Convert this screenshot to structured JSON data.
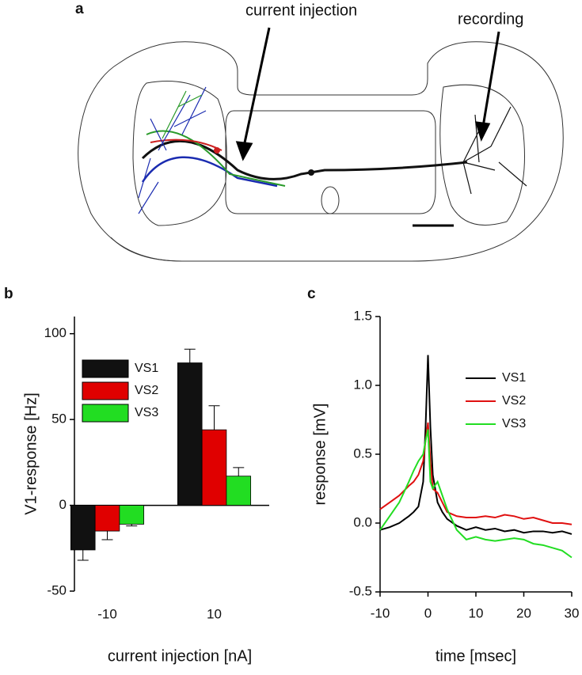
{
  "diagram": {
    "panel_label": "a",
    "annotations": [
      "current injection",
      "recording"
    ]
  },
  "chart_data": [
    {
      "type": "bar",
      "panel_label": "b",
      "x_label": "current injection [nA]",
      "y_label": "V1-response [Hz]",
      "categories": [
        "-10",
        "10"
      ],
      "series": [
        {
          "name": "VS1",
          "color": "#111111",
          "values": [
            -26,
            83
          ],
          "errors": [
            6,
            8
          ]
        },
        {
          "name": "VS2",
          "color": "#e00000",
          "values": [
            -15,
            44
          ],
          "errors": [
            5,
            14
          ]
        },
        {
          "name": "VS3",
          "color": "#22dd22",
          "values": [
            -11,
            17
          ],
          "errors": [
            1,
            5
          ]
        }
      ],
      "ylim": [
        -50,
        110
      ],
      "yticks": [
        -50,
        0,
        50,
        100
      ],
      "legend": "upper left"
    },
    {
      "type": "line",
      "panel_label": "c",
      "x_label": "time [msec]",
      "y_label": "response [mV]",
      "x": [
        -10,
        -8,
        -6,
        -4,
        -3,
        -2,
        -1,
        -0.5,
        0,
        0.5,
        1,
        2,
        3,
        4,
        6,
        8,
        10,
        12,
        14,
        16,
        18,
        20,
        22,
        24,
        26,
        28,
        30
      ],
      "series": [
        {
          "name": "VS1",
          "color": "#000000",
          "values": [
            -0.05,
            -0.03,
            0.0,
            0.05,
            0.08,
            0.12,
            0.3,
            0.7,
            1.22,
            0.7,
            0.35,
            0.15,
            0.08,
            0.03,
            -0.02,
            -0.05,
            -0.03,
            -0.05,
            -0.04,
            -0.06,
            -0.05,
            -0.07,
            -0.06,
            -0.06,
            -0.07,
            -0.06,
            -0.08
          ]
        },
        {
          "name": "VS2",
          "color": "#e01010",
          "values": [
            0.1,
            0.15,
            0.2,
            0.27,
            0.3,
            0.35,
            0.45,
            0.6,
            0.73,
            0.45,
            0.25,
            0.22,
            0.15,
            0.08,
            0.05,
            0.04,
            0.04,
            0.05,
            0.04,
            0.06,
            0.05,
            0.03,
            0.04,
            0.02,
            0.0,
            0.0,
            -0.01
          ]
        },
        {
          "name": "VS3",
          "color": "#22dd22",
          "values": [
            -0.05,
            0.05,
            0.15,
            0.3,
            0.38,
            0.45,
            0.5,
            0.6,
            0.68,
            0.3,
            0.25,
            0.3,
            0.2,
            0.1,
            -0.05,
            -0.12,
            -0.1,
            -0.12,
            -0.13,
            -0.12,
            -0.11,
            -0.12,
            -0.15,
            -0.16,
            -0.18,
            -0.2,
            -0.25
          ]
        }
      ],
      "xlim": [
        -10,
        30
      ],
      "xticks": [
        -10,
        0,
        10,
        20,
        30
      ],
      "ylim": [
        -0.5,
        1.5
      ],
      "yticks": [
        -0.5,
        {
          "value": 0,
          "label": "0.0"
        },
        0.5,
        {
          "value": 1,
          "label": "1.0"
        },
        1.5
      ],
      "legend": "upper right"
    }
  ]
}
